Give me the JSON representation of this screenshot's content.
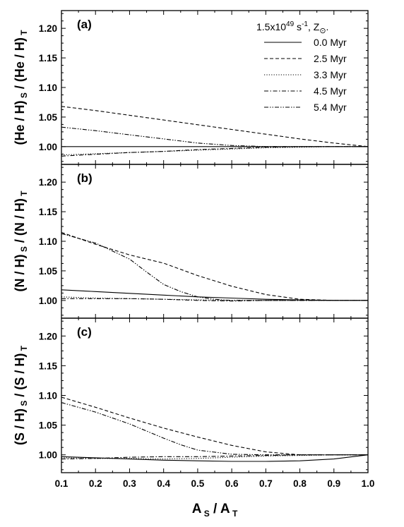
{
  "chart_data": [
    {
      "type": "line",
      "panel_label": "(a)",
      "ylabel": {
        "main": "(He / H)",
        "sub1": "S",
        "mid": " / (He / H)",
        "sub2": "T"
      },
      "ylim": [
        0.97,
        1.23
      ],
      "yticks": [
        1.0,
        1.05,
        1.1,
        1.15,
        1.2
      ],
      "xlim": [
        0.1,
        1.0
      ],
      "legend": {
        "position": "top-right",
        "header": {
          "base": "1.5x10",
          "exp": "49",
          "unit": " s",
          "unit_exp": "-1",
          "z": ", Z",
          "z_sub": "⊙",
          "end": "."
        },
        "entries": [
          "0.0 Myr",
          "2.5 Myr",
          "3.3 Myr",
          "4.5 Myr",
          "5.4 Myr"
        ]
      },
      "series": [
        {
          "name": "0.0 Myr",
          "style": "solid",
          "x": [
            0.1,
            1.0
          ],
          "y": [
            1.0,
            1.0
          ]
        },
        {
          "name": "2.5 Myr",
          "style": "dashed",
          "x": [
            0.1,
            0.2,
            0.3,
            0.4,
            0.5,
            0.6,
            0.7,
            0.8,
            0.9,
            1.0
          ],
          "y": [
            1.068,
            1.061,
            1.053,
            1.045,
            1.037,
            1.029,
            1.021,
            1.013,
            1.006,
            1.0
          ]
        },
        {
          "name": "3.3 Myr",
          "style": "dotted",
          "x": [
            0.1,
            0.2,
            0.3,
            0.4,
            0.5,
            0.6,
            0.7,
            0.8,
            0.9,
            1.0
          ],
          "y": [
            0.986,
            0.988,
            0.99,
            0.992,
            0.994,
            0.996,
            0.998,
            0.999,
            1.0,
            1.0
          ]
        },
        {
          "name": "4.5 Myr",
          "style": "dashdot",
          "x": [
            0.1,
            0.2,
            0.3,
            0.4,
            0.5,
            0.6,
            0.7,
            0.8,
            0.9,
            1.0
          ],
          "y": [
            0.984,
            0.987,
            0.99,
            0.992,
            0.995,
            0.997,
            0.999,
            1.0,
            1.0,
            1.0
          ]
        },
        {
          "name": "5.4 Myr",
          "style": "dashdotdot",
          "x": [
            0.1,
            0.2,
            0.3,
            0.4,
            0.5,
            0.6,
            0.7,
            0.8,
            0.9,
            1.0
          ],
          "y": [
            1.033,
            1.027,
            1.02,
            1.013,
            1.006,
            1.002,
            1.0,
            1.0,
            1.0,
            1.0
          ]
        }
      ]
    },
    {
      "type": "line",
      "panel_label": "(b)",
      "ylabel": {
        "main": "(N / H)",
        "sub1": "S",
        "mid": " / (N / H)",
        "sub2": "T"
      },
      "ylim": [
        0.97,
        1.23
      ],
      "yticks": [
        1.0,
        1.05,
        1.1,
        1.15,
        1.2
      ],
      "xlim": [
        0.1,
        1.0
      ],
      "series": [
        {
          "name": "0.0 Myr",
          "style": "solid",
          "x": [
            0.1,
            0.2,
            0.3,
            0.4,
            0.5,
            0.6,
            0.7,
            0.8,
            0.9,
            1.0
          ],
          "y": [
            1.018,
            1.015,
            1.012,
            1.009,
            1.006,
            1.004,
            1.002,
            1.001,
            1.0,
            1.0
          ]
        },
        {
          "name": "2.5 Myr",
          "style": "dashed",
          "x": [
            0.1,
            0.2,
            0.3,
            0.35,
            0.4,
            0.5,
            0.6,
            0.7,
            0.8,
            0.9,
            1.0
          ],
          "y": [
            1.115,
            1.095,
            1.077,
            1.07,
            1.063,
            1.042,
            1.024,
            1.01,
            1.002,
            1.0,
            1.0
          ]
        },
        {
          "name": "3.3 Myr",
          "style": "dotted",
          "x": [
            0.1,
            0.2,
            0.3,
            0.4,
            0.5,
            0.6,
            0.7,
            0.8,
            0.9,
            1.0
          ],
          "y": [
            1.006,
            1.004,
            1.003,
            1.002,
            1.001,
            1.0,
            1.0,
            1.0,
            1.0,
            1.0
          ]
        },
        {
          "name": "4.5 Myr",
          "style": "dashdot",
          "x": [
            0.1,
            0.2,
            0.3,
            0.4,
            0.5,
            0.6,
            0.7,
            0.8,
            0.9,
            1.0
          ],
          "y": [
            1.003,
            1.003,
            1.003,
            1.002,
            1.0,
            0.999,
            1.0,
            1.0,
            1.0,
            1.0
          ]
        },
        {
          "name": "5.4 Myr",
          "style": "dashdotdot",
          "x": [
            0.1,
            0.2,
            0.3,
            0.35,
            0.4,
            0.45,
            0.5,
            0.55,
            0.6,
            0.7,
            0.8,
            0.9,
            1.0
          ],
          "y": [
            1.113,
            1.097,
            1.07,
            1.048,
            1.027,
            1.015,
            1.006,
            1.002,
            1.0,
            1.0,
            1.0,
            1.0,
            1.0
          ]
        }
      ]
    },
    {
      "type": "line",
      "panel_label": "(c)",
      "ylabel": {
        "main": "(S / H)",
        "sub1": "S",
        "mid": " / (S / H)",
        "sub2": "T"
      },
      "ylim": [
        0.97,
        1.23
      ],
      "yticks": [
        1.0,
        1.05,
        1.1,
        1.15,
        1.2
      ],
      "xlim": [
        0.1,
        1.0
      ],
      "xticks": [
        0.1,
        0.2,
        0.3,
        0.4,
        0.5,
        0.6,
        0.7,
        0.8,
        0.9,
        1.0
      ],
      "xlabel": {
        "a1": "A",
        "s1": "S",
        "mid": " / A",
        "s2": "T"
      },
      "series": [
        {
          "name": "0.0 Myr",
          "style": "solid",
          "x": [
            0.1,
            0.2,
            0.3,
            0.4,
            0.5,
            0.6,
            0.7,
            0.8,
            0.9,
            1.0
          ],
          "y": [
            0.997,
            0.995,
            0.993,
            0.991,
            0.99,
            0.989,
            0.989,
            0.99,
            0.993,
            1.0
          ]
        },
        {
          "name": "2.5 Myr",
          "style": "dashed",
          "x": [
            0.1,
            0.2,
            0.3,
            0.4,
            0.5,
            0.6,
            0.7,
            0.8,
            0.9,
            1.0
          ],
          "y": [
            1.097,
            1.08,
            1.062,
            1.045,
            1.03,
            1.016,
            1.005,
            1.0,
            1.0,
            1.0
          ]
        },
        {
          "name": "3.3 Myr",
          "style": "dotted",
          "x": [
            0.1,
            0.2,
            0.3,
            0.4,
            0.5,
            0.6,
            0.7,
            0.8,
            0.9,
            1.0
          ],
          "y": [
            0.995,
            0.994,
            0.994,
            0.993,
            0.994,
            0.996,
            0.998,
            0.999,
            1.0,
            1.0
          ]
        },
        {
          "name": "4.5 Myr",
          "style": "dashdot",
          "x": [
            0.1,
            0.2,
            0.3,
            0.4,
            0.5,
            0.6,
            0.7,
            0.8,
            0.9,
            1.0
          ],
          "y": [
            0.993,
            0.994,
            0.996,
            0.997,
            0.997,
            0.998,
            0.999,
            1.0,
            1.0,
            1.0
          ]
        },
        {
          "name": "5.4 Myr",
          "style": "dashdotdot",
          "x": [
            0.1,
            0.2,
            0.3,
            0.4,
            0.45,
            0.5,
            0.6,
            0.7,
            0.8,
            0.9,
            1.0
          ],
          "y": [
            1.088,
            1.072,
            1.052,
            1.028,
            1.017,
            1.008,
            1.001,
            1.0,
            1.0,
            1.0,
            1.0
          ]
        }
      ]
    }
  ]
}
